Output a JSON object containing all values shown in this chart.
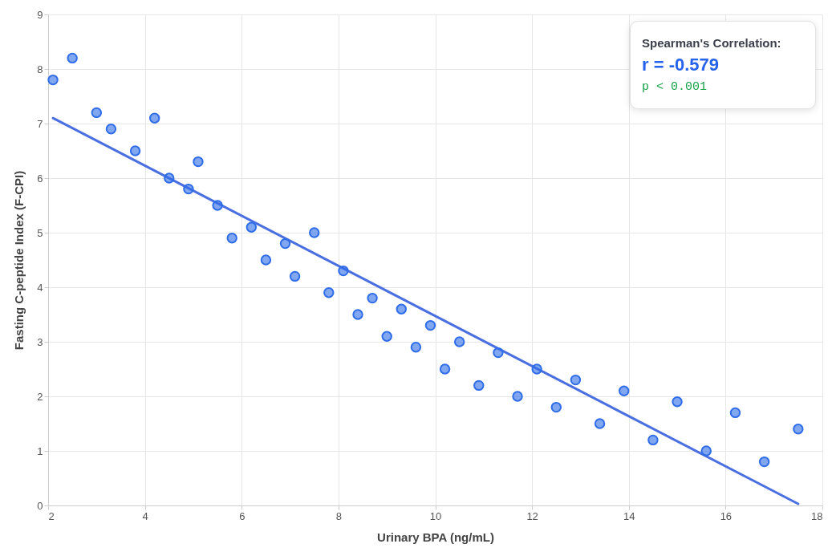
{
  "chart_data": {
    "type": "scatter",
    "xlabel": "Urinary BPA (ng/mL)",
    "ylabel": "Fasting C-peptide Index (F-CPI)",
    "xlim": [
      2,
      18
    ],
    "ylim": [
      0,
      9
    ],
    "xticks": [
      2,
      4,
      6,
      8,
      10,
      12,
      14,
      16,
      18
    ],
    "yticks": [
      0,
      1,
      2,
      3,
      4,
      5,
      6,
      7,
      8,
      9
    ],
    "grid": true,
    "annotations": [
      "Spearman's Correlation:",
      "r = -0.579",
      "p < 0.001"
    ],
    "series": [
      {
        "marker": "circle",
        "color": "#2f6de8",
        "x": [
          2.1,
          2.5,
          3.0,
          3.3,
          3.8,
          4.2,
          4.5,
          4.9,
          5.1,
          5.5,
          5.8,
          6.2,
          6.5,
          6.9,
          7.1,
          7.5,
          7.8,
          8.1,
          8.4,
          8.7,
          9.0,
          9.3,
          9.6,
          9.9,
          10.2,
          10.5,
          10.9,
          11.3,
          11.7,
          12.1,
          12.5,
          12.9,
          13.4,
          13.9,
          14.5,
          15.0,
          15.6,
          16.2,
          16.8,
          17.5
        ],
        "values": [
          7.8,
          8.2,
          7.2,
          6.9,
          6.5,
          7.1,
          6.0,
          5.8,
          6.3,
          5.5,
          4.9,
          5.1,
          4.5,
          4.8,
          4.2,
          5.0,
          3.9,
          4.3,
          3.5,
          3.8,
          3.1,
          3.6,
          2.9,
          3.3,
          2.5,
          3.0,
          2.2,
          2.8,
          2.0,
          2.5,
          1.8,
          2.3,
          1.5,
          2.1,
          1.2,
          1.9,
          1.0,
          1.7,
          0.8,
          1.4
        ]
      },
      {
        "type": "line",
        "color": "#4a6fe0",
        "line_style": "solid",
        "x": [
          2.1,
          17.5
        ],
        "values": [
          7.1,
          0.03
        ]
      }
    ]
  }
}
